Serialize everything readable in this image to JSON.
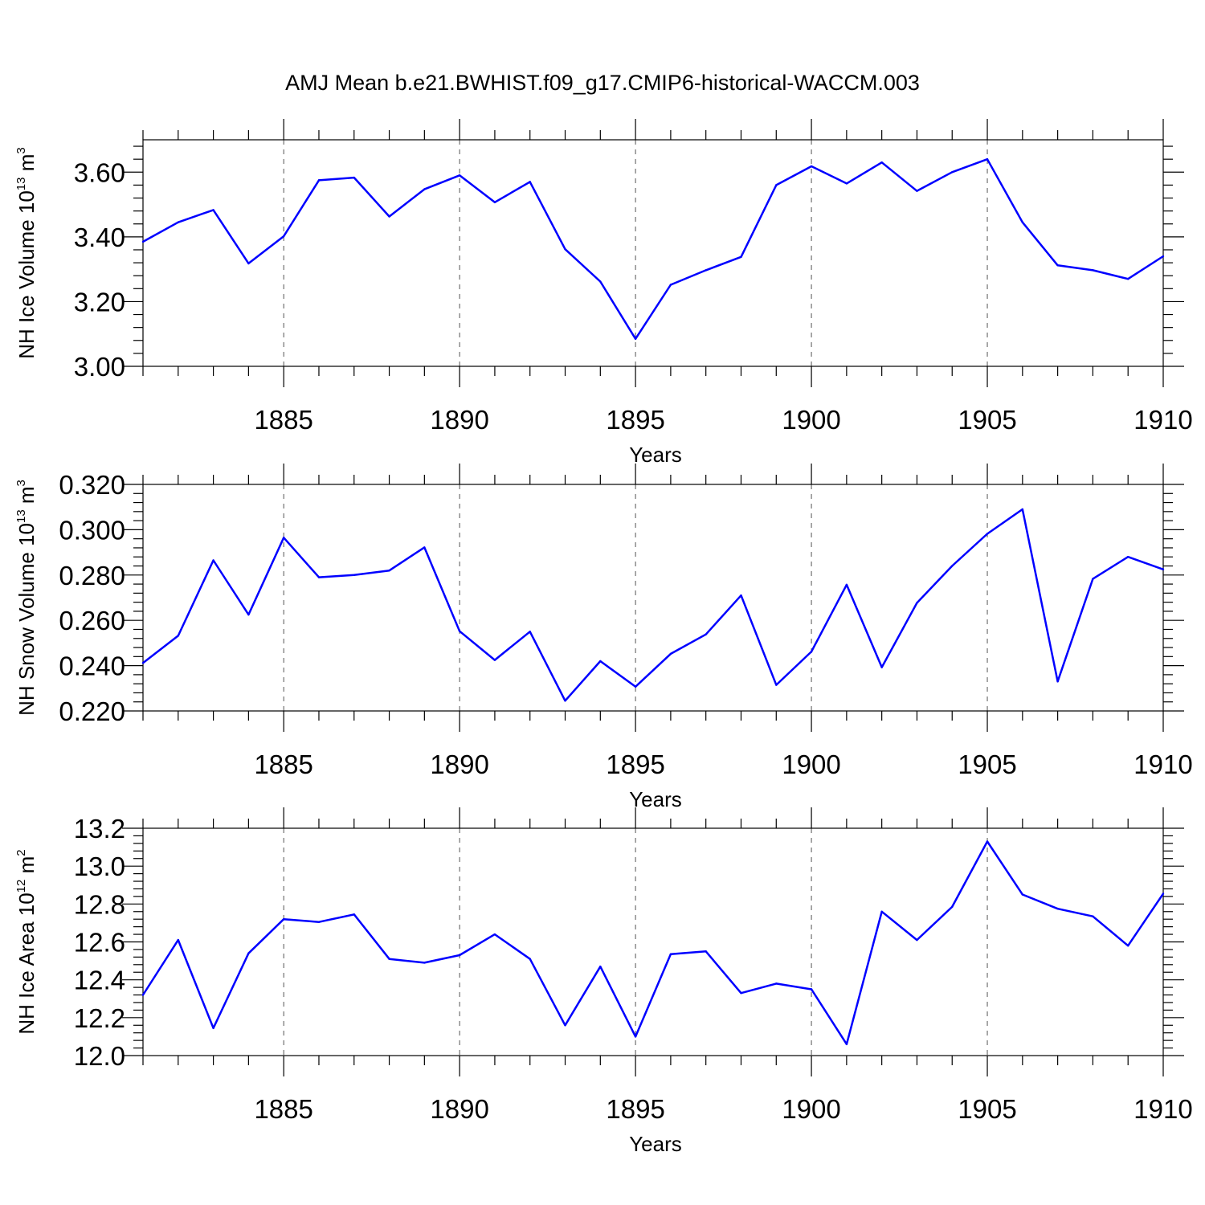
{
  "title": "AMJ Mean b.e21.BWHIST.f09_g17.CMIP6-historical-WACCM.003",
  "chart_data": [
    {
      "type": "line",
      "name": "NH Ice Volume",
      "ylabel": "NH Ice Volume 10",
      "ylabel_exp": "13",
      "ylabel_unit": " m",
      "ylabel_unit_exp": "3",
      "xlabel": "Years",
      "xlim": [
        1881,
        1910
      ],
      "ylim": [
        3.0,
        3.7
      ],
      "yticks": [
        "3.00",
        "3.20",
        "3.40",
        "3.60"
      ],
      "ytick_values": [
        3.0,
        3.2,
        3.4,
        3.6
      ],
      "xticks": [
        "1885",
        "1890",
        "1895",
        "1900",
        "1905",
        "1910"
      ],
      "xtick_values": [
        1885,
        1890,
        1895,
        1900,
        1905,
        1910
      ],
      "color": "#0000ff",
      "x": [
        1881,
        1882,
        1883,
        1884,
        1885,
        1886,
        1887,
        1888,
        1889,
        1890,
        1891,
        1892,
        1893,
        1894,
        1895,
        1896,
        1897,
        1898,
        1899,
        1900,
        1901,
        1902,
        1903,
        1904,
        1905,
        1906,
        1907,
        1908,
        1909,
        1910
      ],
      "y": [
        3.385,
        3.445,
        3.483,
        3.318,
        3.402,
        3.575,
        3.583,
        3.463,
        3.547,
        3.59,
        3.507,
        3.57,
        3.362,
        3.262,
        3.085,
        3.252,
        3.297,
        3.338,
        3.56,
        3.618,
        3.565,
        3.63,
        3.542,
        3.6,
        3.64,
        3.445,
        3.312,
        3.297,
        3.27,
        3.34
      ]
    },
    {
      "type": "line",
      "name": "NH Snow Volume",
      "ylabel": "NH Snow Volume 10",
      "ylabel_exp": "13",
      "ylabel_unit": " m",
      "ylabel_unit_exp": "3",
      "xlabel": "Years",
      "xlim": [
        1881,
        1910
      ],
      "ylim": [
        0.22,
        0.32
      ],
      "yticks": [
        "0.220",
        "0.240",
        "0.260",
        "0.280",
        "0.300",
        "0.320"
      ],
      "ytick_values": [
        0.22,
        0.24,
        0.26,
        0.28,
        0.3,
        0.32
      ],
      "xticks": [
        "1885",
        "1890",
        "1895",
        "1900",
        "1905",
        "1910"
      ],
      "xtick_values": [
        1885,
        1890,
        1895,
        1900,
        1905,
        1910
      ],
      "color": "#0000ff",
      "x": [
        1881,
        1882,
        1883,
        1884,
        1885,
        1886,
        1887,
        1888,
        1889,
        1890,
        1891,
        1892,
        1893,
        1894,
        1895,
        1896,
        1897,
        1898,
        1899,
        1900,
        1901,
        1902,
        1903,
        1904,
        1905,
        1906,
        1907,
        1908,
        1909,
        1910
      ],
      "y": [
        0.2412,
        0.2532,
        0.2865,
        0.2625,
        0.2965,
        0.279,
        0.28,
        0.282,
        0.2922,
        0.2552,
        0.2425,
        0.255,
        0.2245,
        0.242,
        0.2307,
        0.2452,
        0.2538,
        0.271,
        0.2315,
        0.2462,
        0.2757,
        0.2393,
        0.2677,
        0.284,
        0.2982,
        0.309,
        0.233,
        0.2783,
        0.288,
        0.2825
      ]
    },
    {
      "type": "line",
      "name": "NH Ice Area",
      "ylabel": "NH Ice Area 10",
      "ylabel_exp": "12",
      "ylabel_unit": " m",
      "ylabel_unit_exp": "2",
      "xlabel": "Years",
      "xlim": [
        1881,
        1910
      ],
      "ylim": [
        12.0,
        13.2
      ],
      "yticks": [
        "12.0",
        "12.2",
        "12.4",
        "12.6",
        "12.8",
        "13.0",
        "13.2"
      ],
      "ytick_values": [
        12.0,
        12.2,
        12.4,
        12.6,
        12.8,
        13.0,
        13.2
      ],
      "xticks": [
        "1885",
        "1890",
        "1895",
        "1900",
        "1905",
        "1910"
      ],
      "xtick_values": [
        1885,
        1890,
        1895,
        1900,
        1905,
        1910
      ],
      "color": "#0000ff",
      "x": [
        1881,
        1882,
        1883,
        1884,
        1885,
        1886,
        1887,
        1888,
        1889,
        1890,
        1891,
        1892,
        1893,
        1894,
        1895,
        1896,
        1897,
        1898,
        1899,
        1900,
        1901,
        1902,
        1903,
        1904,
        1905,
        1906,
        1907,
        1908,
        1909,
        1910
      ],
      "y": [
        12.32,
        12.61,
        12.145,
        12.54,
        12.72,
        12.705,
        12.745,
        12.51,
        12.49,
        12.53,
        12.64,
        12.51,
        12.16,
        12.47,
        12.1,
        12.535,
        12.55,
        12.33,
        12.38,
        12.35,
        12.06,
        12.76,
        12.61,
        12.785,
        13.13,
        12.85,
        12.775,
        12.735,
        12.58,
        12.855
      ]
    }
  ]
}
